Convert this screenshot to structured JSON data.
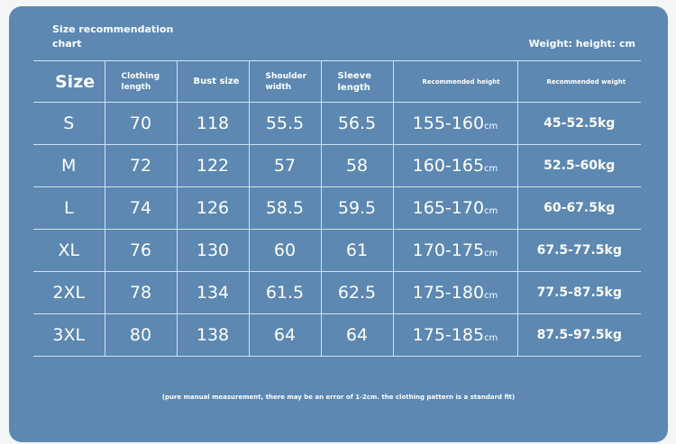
{
  "title": "Size recommendation chart",
  "unit_note": "Weight: height: cm",
  "columns": {
    "size": "Size",
    "clothing_length": "Clothing length",
    "bust_size": "Bust size",
    "shoulder_width": "Shoulder width",
    "sleeve_length": "Sleeve length",
    "recommended_height": "Recommended height",
    "recommended_weight": "Recommended weight"
  },
  "height_unit": "cm",
  "rows": [
    {
      "size": "S",
      "clothing_length": "70",
      "bust": "118",
      "shoulder": "55.5",
      "sleeve": "56.5",
      "height": "155-160",
      "weight": "45-52.5kg"
    },
    {
      "size": "M",
      "clothing_length": "72",
      "bust": "122",
      "shoulder": "57",
      "sleeve": "58",
      "height": "160-165",
      "weight": "52.5-60kg"
    },
    {
      "size": "L",
      "clothing_length": "74",
      "bust": "126",
      "shoulder": "58.5",
      "sleeve": "59.5",
      "height": "165-170",
      "weight": "60-67.5kg"
    },
    {
      "size": "XL",
      "clothing_length": "76",
      "bust": "130",
      "shoulder": "60",
      "sleeve": "61",
      "height": "170-175",
      "weight": "67.5-77.5kg"
    },
    {
      "size": "2XL",
      "clothing_length": "78",
      "bust": "134",
      "shoulder": "61.5",
      "sleeve": "62.5",
      "height": "175-180",
      "weight": "77.5-87.5kg"
    },
    {
      "size": "3XL",
      "clothing_length": "80",
      "bust": "138",
      "shoulder": "64",
      "sleeve": "64",
      "height": "175-185",
      "weight": "87.5-97.5kg"
    }
  ],
  "footnote": "(pure manual measurement, there may be an error of 1-2cm. the clothing pattern is a standard fit)",
  "colors": {
    "card_background": "#5c88b2",
    "text": "#ffffff",
    "page_background": "#f4f5f7"
  }
}
